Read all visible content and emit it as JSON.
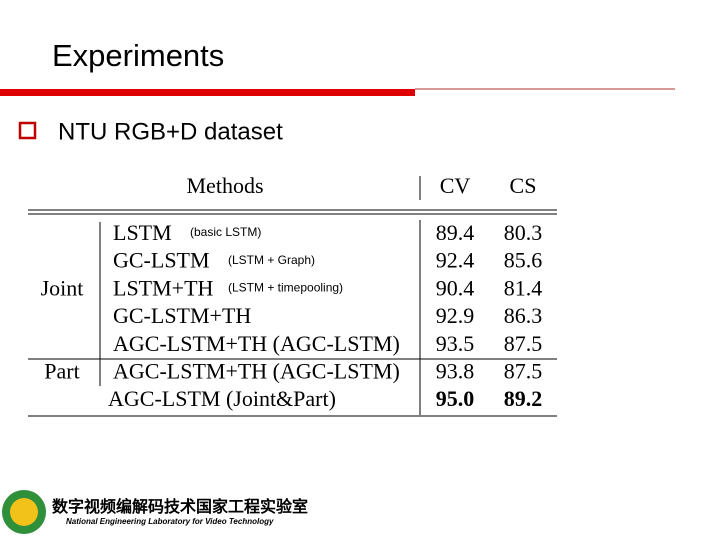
{
  "header": {
    "title": "Experiments"
  },
  "bullet": "NTU RGB+D dataset",
  "table": {
    "columns": [
      "Methods",
      "CV",
      "CS"
    ],
    "sections": [
      {
        "label": "Joint",
        "rows": [
          {
            "method": "LSTM",
            "note": "(basic LSTM)",
            "cv": "89.4",
            "cs": "80.3"
          },
          {
            "method": "GC-LSTM",
            "note": "(LSTM + Graph)",
            "cv": "92.4",
            "cs": "85.6"
          },
          {
            "method": "LSTM+TH",
            "note": "(LSTM + timepooling)",
            "cv": "90.4",
            "cs": "81.4"
          },
          {
            "method": "GC-LSTM+TH",
            "cv": "92.9",
            "cs": "86.3"
          },
          {
            "method": "AGC-LSTM+TH (AGC-LSTM)",
            "cv": "93.5",
            "cs": "87.5"
          }
        ]
      },
      {
        "label": "Part",
        "rows": [
          {
            "method": "AGC-LSTM+TH (AGC-LSTM)",
            "cv": "93.8",
            "cs": "87.5"
          }
        ]
      },
      {
        "rows": [
          {
            "method": "AGC-LSTM (Joint&Part)",
            "cv": "95.0",
            "cs": "89.2"
          }
        ]
      }
    ]
  },
  "footer": {
    "lab_cn": "数字视频编解码技术国家工程实验室",
    "lab_en": "National Engineering Laboratory for Video Technology"
  }
}
